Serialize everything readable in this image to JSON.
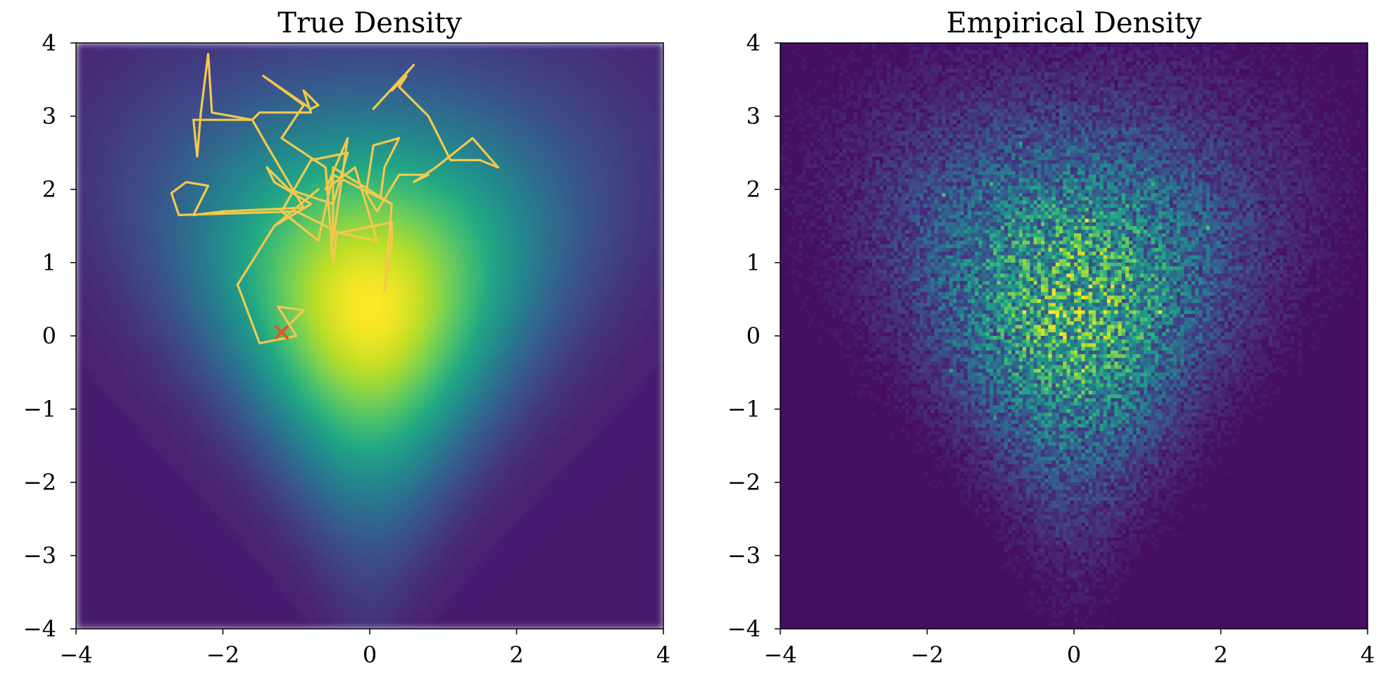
{
  "chart_data": [
    {
      "type": "heatmap",
      "title": "True Density",
      "xlabel": "",
      "ylabel": "",
      "xlim": [
        -4,
        4
      ],
      "ylim": [
        -4,
        4
      ],
      "xticks": [
        -4,
        -2,
        0,
        2,
        4
      ],
      "yticks": [
        -4,
        -3,
        -2,
        -1,
        0,
        1,
        2,
        3,
        4
      ],
      "colormap": "viridis",
      "grid": false,
      "density": "peak near (0, 0.3); heart-shaped spread widening upward, narrowing to a thin ridge along x=0 toward y=-4",
      "overlay_trace": {
        "type": "line",
        "color": "#f2c94c",
        "points": [
          [
            -1.2,
            0.05
          ],
          [
            -0.9,
            0.35
          ],
          [
            -1.25,
            0.4
          ],
          [
            -1.0,
            0.0
          ],
          [
            -1.5,
            -0.1
          ],
          [
            -1.8,
            0.7
          ],
          [
            -1.3,
            1.5
          ],
          [
            -0.7,
            2.0
          ],
          [
            -1.3,
            1.5
          ],
          [
            -0.8,
            1.8
          ],
          [
            -1.3,
            2.1
          ],
          [
            -1.4,
            2.3
          ],
          [
            -1.1,
            2.0
          ],
          [
            -0.5,
            1.8
          ],
          [
            -0.3,
            2.5
          ],
          [
            -0.8,
            2.4
          ],
          [
            -1.2,
            1.7
          ],
          [
            -0.7,
            1.3
          ],
          [
            -0.5,
            2.2
          ],
          [
            0.3,
            1.8
          ],
          [
            -0.5,
            2.3
          ],
          [
            -0.5,
            1.3
          ],
          [
            -0.3,
            2.7
          ],
          [
            -0.6,
            2.0
          ],
          [
            -0.2,
            2.3
          ],
          [
            0.1,
            1.3
          ],
          [
            -0.4,
            1.4
          ],
          [
            -1.0,
            1.7
          ],
          [
            -2.6,
            1.65
          ],
          [
            -2.7,
            1.95
          ],
          [
            -2.5,
            2.1
          ],
          [
            -2.2,
            2.05
          ],
          [
            -2.4,
            1.65
          ],
          [
            -2.0,
            1.7
          ],
          [
            -0.9,
            1.75
          ],
          [
            -1.4,
            2.6
          ],
          [
            -1.6,
            2.95
          ],
          [
            -2.4,
            2.95
          ],
          [
            -2.35,
            2.45
          ],
          [
            -2.3,
            3.05
          ],
          [
            -2.2,
            3.85
          ],
          [
            -2.15,
            3.05
          ],
          [
            -1.6,
            2.95
          ],
          [
            -1.5,
            3.05
          ],
          [
            -0.8,
            3.05
          ],
          [
            -0.9,
            3.35
          ],
          [
            -0.7,
            3.15
          ],
          [
            -0.8,
            3.1
          ],
          [
            -1.45,
            3.55
          ],
          [
            -0.9,
            3.15
          ],
          [
            -1.2,
            2.7
          ],
          [
            -0.6,
            2.3
          ],
          [
            -0.5,
            1.0
          ],
          [
            -0.45,
            1.4
          ],
          [
            0.3,
            1.55
          ],
          [
            0.3,
            1.25
          ],
          [
            0.2,
            0.6
          ],
          [
            0.3,
            1.8
          ],
          [
            0.15,
            1.9
          ],
          [
            0.2,
            2.3
          ],
          [
            0.4,
            2.7
          ],
          [
            0.05,
            2.6
          ],
          [
            -0.05,
            1.95
          ],
          [
            0.1,
            1.7
          ],
          [
            0.4,
            2.2
          ],
          [
            0.8,
            2.2
          ],
          [
            0.6,
            2.1
          ],
          [
            0.9,
            2.3
          ],
          [
            1.4,
            2.7
          ],
          [
            1.75,
            2.3
          ],
          [
            1.5,
            2.4
          ],
          [
            1.1,
            2.4
          ],
          [
            0.8,
            3.0
          ],
          [
            0.4,
            3.4
          ],
          [
            0.5,
            3.55
          ],
          [
            0.3,
            3.35
          ],
          [
            0.6,
            3.7
          ],
          [
            0.05,
            3.1
          ]
        ]
      },
      "start_marker": {
        "x": -1.2,
        "y": 0.05,
        "symbol": "x",
        "color": "#e0562a"
      }
    },
    {
      "type": "heatmap",
      "title": "Empirical Density",
      "xlabel": "",
      "ylabel": "",
      "xlim": [
        -4,
        4
      ],
      "ylim": [
        -4,
        4
      ],
      "xticks": [
        -4,
        -2,
        0,
        2,
        4
      ],
      "yticks": [
        -4,
        -3,
        -2,
        -1,
        0,
        1,
        2,
        3,
        4
      ],
      "colormap": "viridis",
      "grid": false,
      "bins": 160,
      "density": "noisy 2D histogram of samples from the same heart-shaped distribution"
    }
  ]
}
